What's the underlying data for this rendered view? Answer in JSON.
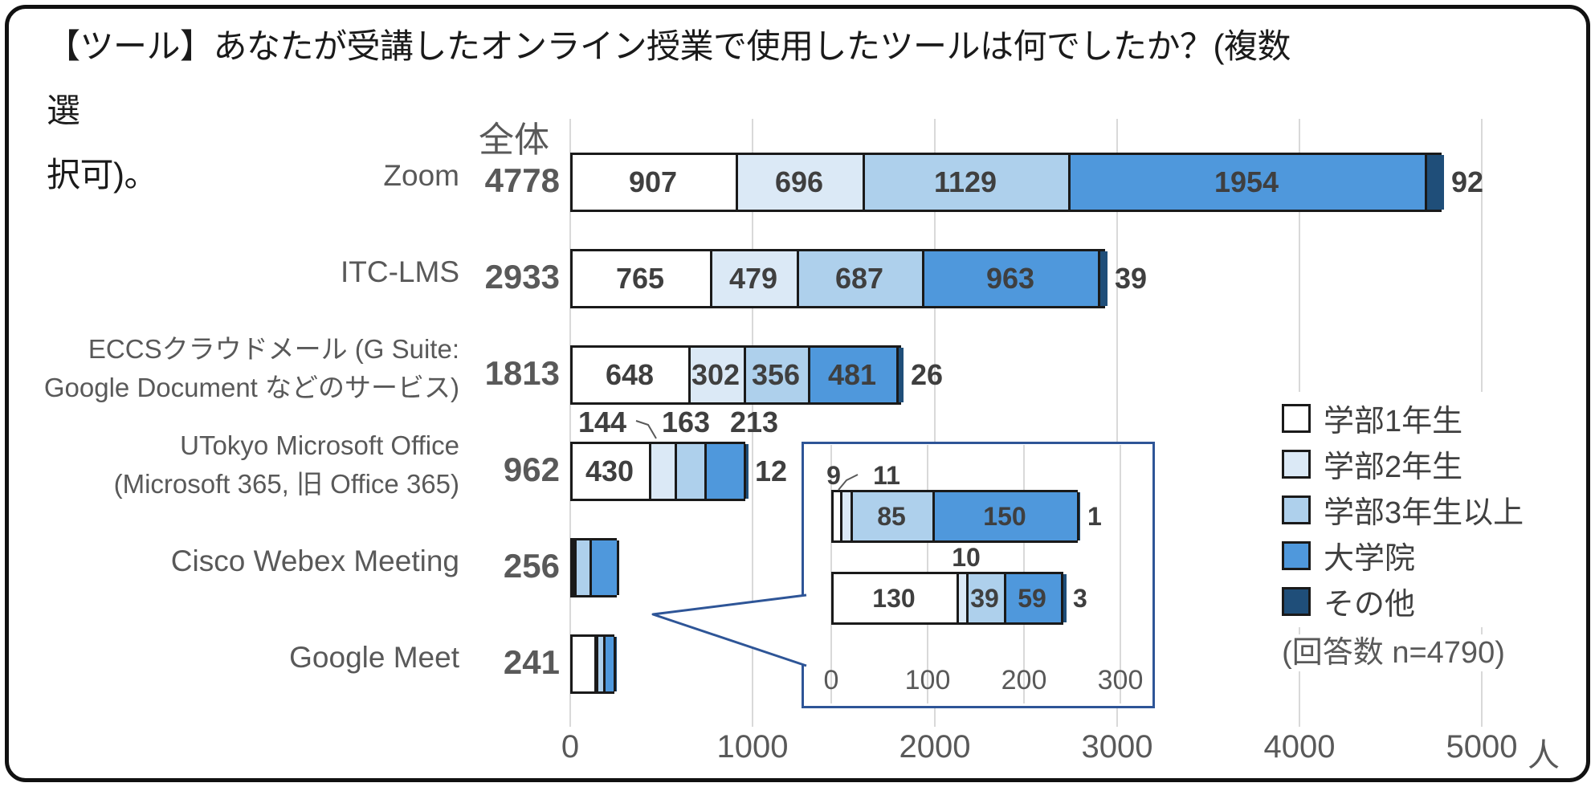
{
  "title": {
    "line1": "【ツール】あなたが受講したオンライン授業で使用したツールは何でしたか？(複数選",
    "line2": "択可)。"
  },
  "chart_data": {
    "type": "bar",
    "orientation": "horizontal",
    "stacked": true,
    "column_header": "全体",
    "unit_label": "人",
    "series_names": [
      "学部1年生",
      "学部2年生",
      "学部3年生以上",
      "大学院",
      "その他"
    ],
    "series_colors": [
      "#ffffff",
      "#dbe9f6",
      "#aed0ec",
      "#4f98dc",
      "#1f4e79"
    ],
    "x_axis": {
      "ticks": [
        0,
        1000,
        2000,
        3000,
        4000,
        5000
      ],
      "max": 5000,
      "grid": true
    },
    "rows": [
      {
        "label_lines": [
          "Zoom"
        ],
        "total": 4778,
        "values": [
          907,
          696,
          1129,
          1954,
          92
        ],
        "label_pos": [
          "in",
          "in",
          "in",
          "in",
          "right"
        ]
      },
      {
        "label_lines": [
          "ITC-LMS"
        ],
        "total": 2933,
        "values": [
          765,
          479,
          687,
          963,
          39
        ],
        "label_pos": [
          "in",
          "in",
          "in",
          "in",
          "right"
        ]
      },
      {
        "label_lines": [
          "ECCSクラウドメール (G Suite:",
          "Google Document などのサービス)"
        ],
        "total": 1813,
        "values": [
          648,
          302,
          356,
          481,
          26
        ],
        "label_pos": [
          "in",
          "in",
          "in",
          "in",
          "right"
        ]
      },
      {
        "label_lines": [
          "UTokyo Microsoft Office",
          "(Microsoft 365, 旧 Office 365)"
        ],
        "total": 962,
        "values": [
          430,
          144,
          163,
          213,
          12
        ],
        "label_pos": [
          "in",
          "above",
          "above",
          "above",
          "right"
        ]
      },
      {
        "label_lines": [
          "Cisco Webex Meeting"
        ],
        "total": 256,
        "values": [
          9,
          11,
          85,
          150,
          1
        ],
        "label_pos": [
          "none",
          "none",
          "none",
          "none",
          "none"
        ]
      },
      {
        "label_lines": [
          "Google Meet"
        ],
        "total": 241,
        "values": [
          130,
          10,
          39,
          59,
          3
        ],
        "label_pos": [
          "none",
          "none",
          "none",
          "none",
          "none"
        ]
      }
    ],
    "legend": {
      "entries": [
        "学部1年生",
        "学部2年生",
        "学部3年生以上",
        "大学院",
        "その他"
      ],
      "note": "(回答数 n=4790)",
      "position": "right"
    },
    "inset": {
      "description": "zoom detail of Cisco Webex Meeting and Google Meet bars",
      "x_axis": {
        "ticks": [
          0,
          100,
          200,
          300
        ],
        "grid": true
      },
      "rows": [
        {
          "source": "Cisco Webex Meeting",
          "values": [
            9,
            11,
            85,
            150,
            1
          ],
          "label_pos": [
            "above",
            "above",
            "in",
            "in",
            "right"
          ]
        },
        {
          "source": "Google Meet",
          "values": [
            130,
            10,
            39,
            59,
            3
          ],
          "label_pos": [
            "in",
            "above",
            "in",
            "in",
            "right"
          ]
        }
      ]
    }
  }
}
